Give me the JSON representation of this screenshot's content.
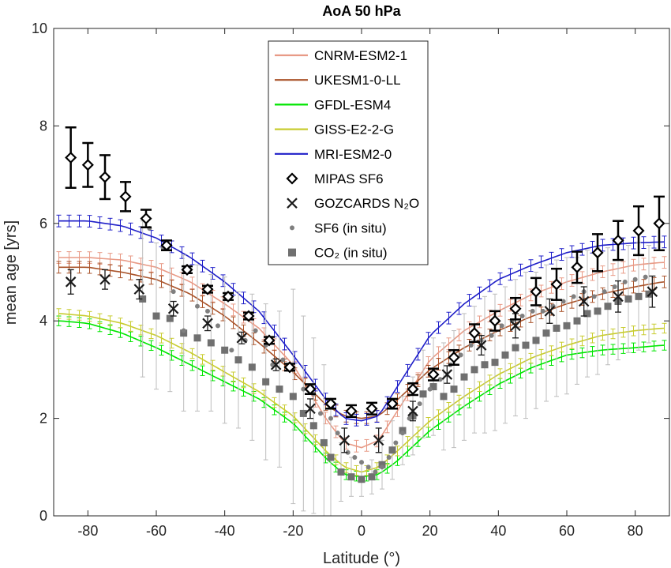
{
  "chart_data": {
    "type": "line",
    "title": "AoA 50 hPa",
    "xlabel": "Latitude (°)",
    "ylabel": "mean age [yrs]",
    "xlim": [
      -90,
      90
    ],
    "ylim": [
      0,
      10
    ],
    "xticks": [
      -80,
      -60,
      -40,
      -20,
      0,
      20,
      40,
      60,
      80
    ],
    "yticks": [
      0,
      2,
      4,
      6,
      8,
      10
    ],
    "grid": false,
    "legend_position": "top-center",
    "model_series": [
      {
        "name": "CNRM-ESM2-1",
        "color": "#e89a86",
        "lat": [
          -88,
          -80,
          -70,
          -60,
          -50,
          -40,
          -30,
          -20,
          -10,
          -5,
          0,
          5,
          10,
          20,
          30,
          40,
          50,
          60,
          70,
          80,
          88
        ],
        "values": [
          5.3,
          5.3,
          5.25,
          5.1,
          4.8,
          4.35,
          3.85,
          3.1,
          1.95,
          1.5,
          1.4,
          1.55,
          2.1,
          3.2,
          3.8,
          4.2,
          4.55,
          4.8,
          5.0,
          5.15,
          5.2
        ],
        "spread": 0.12
      },
      {
        "name": "UKESM1-0-LL",
        "color": "#a9532a",
        "lat": [
          -88,
          -80,
          -70,
          -60,
          -50,
          -40,
          -30,
          -20,
          -10,
          -5,
          0,
          5,
          10,
          20,
          30,
          40,
          50,
          60,
          70,
          80,
          88
        ],
        "values": [
          5.1,
          5.1,
          5.0,
          4.85,
          4.55,
          4.1,
          3.55,
          2.95,
          2.25,
          2.05,
          2.0,
          2.05,
          2.35,
          3.0,
          3.45,
          3.8,
          4.1,
          4.35,
          4.55,
          4.7,
          4.8
        ],
        "spread": 0.12
      },
      {
        "name": "GFDL-ESM4",
        "color": "#00e600",
        "lat": [
          -88,
          -80,
          -70,
          -60,
          -50,
          -40,
          -30,
          -20,
          -10,
          -5,
          0,
          5,
          10,
          20,
          30,
          40,
          50,
          60,
          70,
          80,
          88
        ],
        "values": [
          4.0,
          3.95,
          3.75,
          3.45,
          3.1,
          2.75,
          2.4,
          1.9,
          1.15,
          0.85,
          0.8,
          0.85,
          1.1,
          1.75,
          2.25,
          2.7,
          3.05,
          3.3,
          3.4,
          3.45,
          3.5
        ],
        "spread": 0.1
      },
      {
        "name": "GISS-E2-2-G",
        "color": "#c8cc30",
        "lat": [
          -88,
          -80,
          -70,
          -60,
          -50,
          -40,
          -30,
          -20,
          -10,
          -5,
          0,
          5,
          10,
          20,
          30,
          40,
          50,
          60,
          70,
          80,
          88
        ],
        "values": [
          4.15,
          4.1,
          3.95,
          3.7,
          3.35,
          2.95,
          2.55,
          2.05,
          1.3,
          1.0,
          0.9,
          1.0,
          1.3,
          1.95,
          2.45,
          2.9,
          3.25,
          3.5,
          3.7,
          3.8,
          3.85
        ],
        "spread": 0.1
      },
      {
        "name": "MRI-ESM2-0",
        "color": "#1f1fc8",
        "lat": [
          -88,
          -80,
          -70,
          -60,
          -50,
          -40,
          -30,
          -20,
          -10,
          -5,
          0,
          5,
          10,
          20,
          30,
          40,
          50,
          60,
          70,
          80,
          88
        ],
        "values": [
          6.05,
          6.05,
          5.95,
          5.7,
          5.3,
          4.8,
          4.2,
          3.3,
          2.35,
          2.0,
          1.95,
          2.05,
          2.6,
          3.7,
          4.35,
          4.85,
          5.15,
          5.4,
          5.55,
          5.6,
          5.62
        ],
        "spread": 0.12
      }
    ],
    "observation_series": [
      {
        "name": "MIPAS SF6",
        "marker": "diamond",
        "color": "#000000",
        "points": [
          [
            -85,
            7.35,
            0.62
          ],
          [
            -80,
            7.2,
            0.45
          ],
          [
            -75,
            6.95,
            0.45
          ],
          [
            -69,
            6.55,
            0.3
          ],
          [
            -63,
            6.1,
            0.18
          ],
          [
            -57,
            5.55,
            0.1
          ],
          [
            -51,
            5.05,
            0.07
          ],
          [
            -45,
            4.65,
            0.07
          ],
          [
            -39,
            4.5,
            0.07
          ],
          [
            -33,
            4.1,
            0.07
          ],
          [
            -27,
            3.6,
            0.07
          ],
          [
            -21,
            3.05,
            0.07
          ],
          [
            -15,
            2.6,
            0.1
          ],
          [
            -9,
            2.3,
            0.1
          ],
          [
            -3,
            2.15,
            0.12
          ],
          [
            3,
            2.2,
            0.12
          ],
          [
            9,
            2.3,
            0.1
          ],
          [
            15,
            2.6,
            0.12
          ],
          [
            21,
            2.9,
            0.12
          ],
          [
            27,
            3.25,
            0.15
          ],
          [
            33,
            3.75,
            0.18
          ],
          [
            39,
            4.0,
            0.2
          ],
          [
            45,
            4.25,
            0.22
          ],
          [
            51,
            4.6,
            0.28
          ],
          [
            57,
            4.75,
            0.32
          ],
          [
            63,
            5.1,
            0.32
          ],
          [
            69,
            5.4,
            0.38
          ],
          [
            75,
            5.65,
            0.4
          ],
          [
            81,
            5.85,
            0.5
          ],
          [
            87,
            6.0,
            0.55
          ]
        ]
      },
      {
        "name": "GOZCARDS N₂O",
        "marker": "x",
        "color": "#1a1a1a",
        "points": [
          [
            -85,
            4.8,
            0.25
          ],
          [
            -75,
            4.85,
            0.2
          ],
          [
            -65,
            4.65,
            0.2
          ],
          [
            -55,
            4.25,
            0.15
          ],
          [
            -45,
            3.95,
            0.15
          ],
          [
            -35,
            3.65,
            0.12
          ],
          [
            -25,
            3.1,
            0.12
          ],
          [
            -15,
            2.2,
            0.2
          ],
          [
            -5,
            1.55,
            0.25
          ],
          [
            5,
            1.55,
            0.25
          ],
          [
            15,
            2.15,
            0.2
          ],
          [
            25,
            2.9,
            0.18
          ],
          [
            35,
            3.5,
            0.2
          ],
          [
            45,
            3.9,
            0.25
          ],
          [
            55,
            4.2,
            0.25
          ],
          [
            65,
            4.4,
            0.3
          ],
          [
            75,
            4.5,
            0.32
          ],
          [
            85,
            4.6,
            0.32
          ]
        ]
      },
      {
        "name": "SF6 (in situ)",
        "marker": "dot",
        "color": "#7f7f7f",
        "points": [
          [
            -62,
            5.9
          ],
          [
            -58,
            5.5
          ],
          [
            -55,
            4.6
          ],
          [
            -52,
            3.8
          ],
          [
            -48,
            4.3
          ],
          [
            -45,
            4.2
          ],
          [
            -42,
            3.9
          ],
          [
            -38,
            3.4
          ],
          [
            -34,
            3.6
          ],
          [
            -31,
            3.8
          ],
          [
            -28,
            3.5
          ],
          [
            -26,
            3.1
          ],
          [
            -23,
            3.2
          ],
          [
            -20,
            3.0
          ],
          [
            -17,
            2.6
          ],
          [
            -14,
            2.5
          ],
          [
            -12,
            2.1
          ],
          [
            -9,
            2.0
          ],
          [
            -7,
            1.7
          ],
          [
            -4,
            1.3
          ],
          [
            -2,
            1.2
          ],
          [
            0,
            1.1
          ],
          [
            2,
            1.0
          ],
          [
            4,
            0.9
          ],
          [
            6,
            1.0
          ],
          [
            8,
            1.2
          ],
          [
            10,
            1.5
          ],
          [
            12,
            1.7
          ],
          [
            14,
            2.0
          ],
          [
            17,
            2.3
          ],
          [
            20,
            2.6
          ],
          [
            23,
            2.8
          ],
          [
            26,
            3.1
          ],
          [
            29,
            3.3
          ],
          [
            32,
            3.5
          ],
          [
            35,
            3.6
          ],
          [
            38,
            3.7
          ],
          [
            41,
            3.9
          ],
          [
            44,
            4.0
          ],
          [
            47,
            4.1
          ],
          [
            50,
            4.2
          ],
          [
            53,
            4.2
          ],
          [
            56,
            4.3
          ],
          [
            59,
            4.4
          ],
          [
            62,
            4.5
          ],
          [
            65,
            4.6
          ],
          [
            68,
            4.5
          ],
          [
            71,
            4.6
          ],
          [
            74,
            4.7
          ],
          [
            77,
            4.8
          ],
          [
            80,
            4.85
          ],
          [
            83,
            4.9
          ]
        ]
      },
      {
        "name": "CO₂ (in situ)",
        "marker": "square",
        "color": "#707070",
        "points": [
          [
            -64,
            4.45,
            1.6
          ],
          [
            -60,
            4.1,
            1.5
          ],
          [
            -56,
            4.05,
            1.5
          ],
          [
            -52,
            3.75,
            1.6
          ],
          [
            -48,
            3.65,
            1.5
          ],
          [
            -44,
            3.55,
            1.4
          ],
          [
            -40,
            3.4,
            1.5
          ],
          [
            -36,
            3.2,
            1.4
          ],
          [
            -32,
            3.05,
            1.5
          ],
          [
            -28,
            2.75,
            1.6
          ],
          [
            -24,
            2.6,
            1.6
          ],
          [
            -20,
            2.45,
            2.2
          ],
          [
            -17,
            2.1,
            2.0
          ],
          [
            -14,
            1.85,
            1.8
          ],
          [
            -11,
            1.5,
            1.6
          ],
          [
            -9,
            1.2,
            1.2
          ],
          [
            -6,
            0.9,
            0.6
          ],
          [
            -3,
            0.8,
            0.4
          ],
          [
            0,
            0.75,
            0.35
          ],
          [
            3,
            0.8,
            0.35
          ],
          [
            6,
            1.05,
            0.5
          ],
          [
            9,
            1.35,
            0.6
          ],
          [
            12,
            1.75,
            0.7
          ],
          [
            15,
            2.05,
            0.8
          ],
          [
            18,
            2.5,
            0.9
          ],
          [
            21,
            2.65,
            1.0
          ],
          [
            24,
            2.45,
            1.1
          ],
          [
            27,
            2.6,
            1.2
          ],
          [
            30,
            2.85,
            1.3
          ],
          [
            33,
            3.0,
            1.3
          ],
          [
            36,
            3.1,
            1.4
          ],
          [
            39,
            3.15,
            1.4
          ],
          [
            42,
            3.3,
            1.4
          ],
          [
            45,
            3.45,
            1.4
          ],
          [
            48,
            3.5,
            1.5
          ],
          [
            51,
            3.6,
            1.4
          ],
          [
            54,
            3.75,
            1.4
          ],
          [
            57,
            3.85,
            1.4
          ],
          [
            60,
            3.9,
            1.4
          ],
          [
            63,
            4.0,
            1.3
          ],
          [
            66,
            4.15,
            1.3
          ],
          [
            69,
            4.2,
            1.3
          ],
          [
            72,
            4.3,
            1.2
          ],
          [
            75,
            4.4,
            1.2
          ],
          [
            78,
            4.45,
            1.1
          ],
          [
            81,
            4.5,
            1.1
          ],
          [
            84,
            4.55,
            1.0
          ]
        ]
      }
    ]
  }
}
